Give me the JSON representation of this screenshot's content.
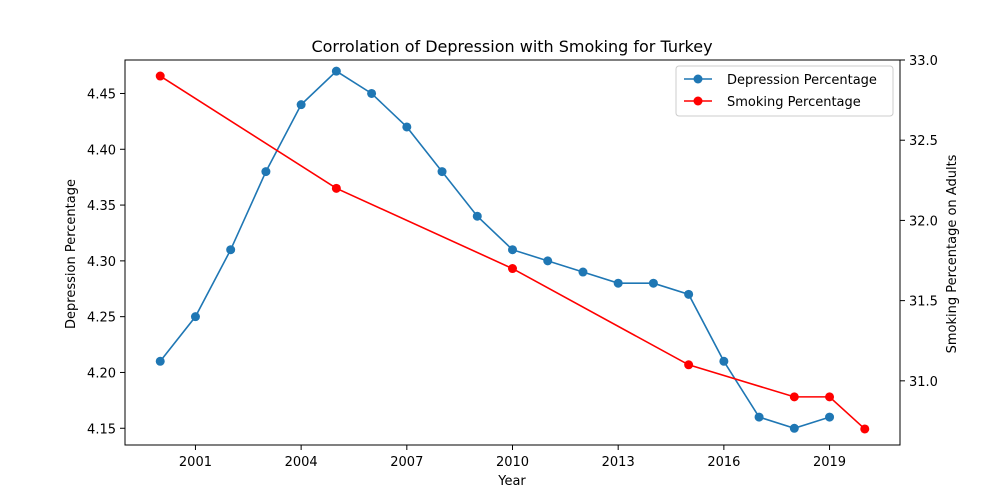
{
  "chart_data": {
    "type": "line",
    "title": "Corrolation of Depression with Smoking for Turkey",
    "xlabel": "Year",
    "ylabel_left": "Depression Percentage",
    "ylabel_right": "Smoking Percentage on Adults",
    "xlim": [
      1999,
      2021
    ],
    "ylim_left": [
      4.135,
      4.48
    ],
    "ylim_right": [
      30.6,
      33.0
    ],
    "x_ticks": [
      2001,
      2004,
      2007,
      2010,
      2013,
      2016,
      2019
    ],
    "y_ticks_left": [
      "4.15",
      "4.20",
      "4.25",
      "4.30",
      "4.35",
      "4.40",
      "4.45"
    ],
    "y_ticks_right": [
      "31.0",
      "31.5",
      "32.0",
      "32.5",
      "33.0"
    ],
    "grid": false,
    "legend_position": "top-right",
    "series": [
      {
        "name": "Depression Percentage",
        "axis": "left",
        "color": "#1f77b4",
        "x": [
          2000,
          2001,
          2002,
          2003,
          2004,
          2005,
          2006,
          2007,
          2008,
          2009,
          2010,
          2011,
          2012,
          2013,
          2014,
          2015,
          2016,
          2017,
          2018,
          2019
        ],
        "values": [
          4.21,
          4.25,
          4.31,
          4.38,
          4.44,
          4.47,
          4.45,
          4.42,
          4.38,
          4.34,
          4.31,
          4.3,
          4.29,
          4.28,
          4.28,
          4.27,
          4.21,
          4.16,
          4.15,
          4.16
        ]
      },
      {
        "name": "Smoking Percentage",
        "axis": "right",
        "color": "#ff0000",
        "x": [
          2000,
          2005,
          2010,
          2015,
          2018,
          2019,
          2020
        ],
        "values": [
          32.9,
          32.2,
          31.7,
          31.1,
          30.9,
          30.9,
          30.7
        ]
      }
    ]
  }
}
